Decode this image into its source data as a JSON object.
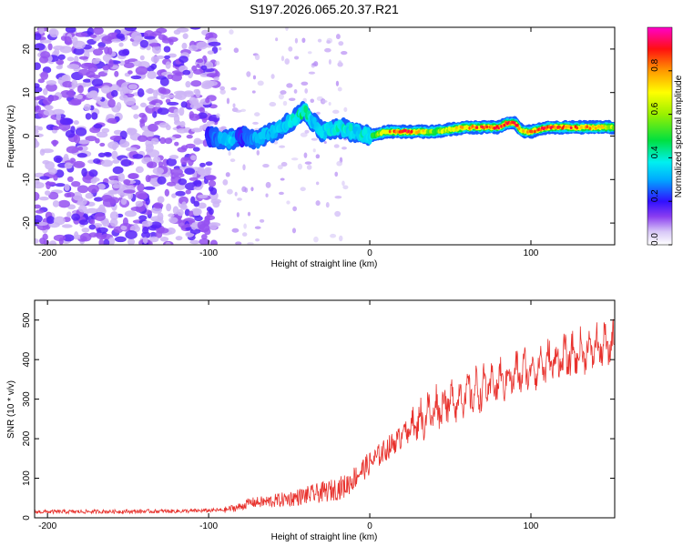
{
  "title": "S197.2026.065.20.37.R21",
  "chart_data": [
    {
      "type": "heatmap",
      "title": "S197.2026.065.20.37.R21",
      "xlabel": "Height of straight line (km)",
      "ylabel": "Frequency (Hz)",
      "xlim": [
        -208,
        152
      ],
      "ylim": [
        -25,
        25
      ],
      "xticks": [
        -200,
        -100,
        0,
        100
      ],
      "yticks": [
        -20,
        -10,
        0,
        10,
        20
      ],
      "colorbar": {
        "label": "Normalized spectral amplitude",
        "range": [
          0,
          1
        ],
        "ticks": [
          "0.0",
          "0.2",
          "0.4",
          "0.6",
          "0.8"
        ],
        "tick_values": [
          0.0,
          0.2,
          0.4,
          0.6,
          0.8
        ]
      },
      "ridge": {
        "description_units": "x in km, frequency in Hz, amplitude normalized",
        "x": [
          -100,
          -88,
          -80,
          -70,
          -60,
          -50,
          -40,
          -35,
          -30,
          -20,
          -10,
          0,
          10,
          20,
          40,
          60,
          80,
          85,
          90,
          95,
          100,
          110,
          130,
          152
        ],
        "freq": [
          0,
          -1,
          0,
          -1,
          1,
          3,
          6,
          3,
          1,
          2,
          1,
          0,
          1,
          1,
          1,
          2,
          2,
          3,
          3,
          1,
          1,
          2,
          2,
          2
        ],
        "amp": [
          0.2,
          0.35,
          0.2,
          0.3,
          0.3,
          0.35,
          0.45,
          0.3,
          0.35,
          0.4,
          0.35,
          0.4,
          0.7,
          0.9,
          0.55,
          0.75,
          0.9,
          0.85,
          0.9,
          0.7,
          0.8,
          0.85,
          0.8,
          0.6
        ]
      },
      "noise_region_x": [
        -208,
        -95
      ]
    },
    {
      "type": "line",
      "xlabel": "Height of straight line (km)",
      "ylabel": "SNR (10 * v/v)",
      "xlim": [
        -208,
        152
      ],
      "ylim": [
        0,
        550
      ],
      "xticks": [
        -200,
        -100,
        0,
        100
      ],
      "yticks": [
        0,
        100,
        200,
        300,
        400,
        500
      ],
      "color": "#e8322d",
      "series": [
        {
          "name": "SNR",
          "x": [
            -208,
            -150,
            -110,
            -90,
            -80,
            -75,
            -65,
            -55,
            -45,
            -35,
            -25,
            -15,
            -5,
            5,
            15,
            25,
            35,
            45,
            55,
            65,
            75,
            85,
            95,
            105,
            115,
            125,
            135,
            145,
            152
          ],
          "values": [
            15,
            16,
            17,
            20,
            28,
            38,
            40,
            45,
            52,
            60,
            68,
            80,
            120,
            155,
            190,
            220,
            250,
            278,
            295,
            310,
            325,
            345,
            360,
            375,
            390,
            400,
            415,
            425,
            430
          ]
        }
      ]
    }
  ]
}
